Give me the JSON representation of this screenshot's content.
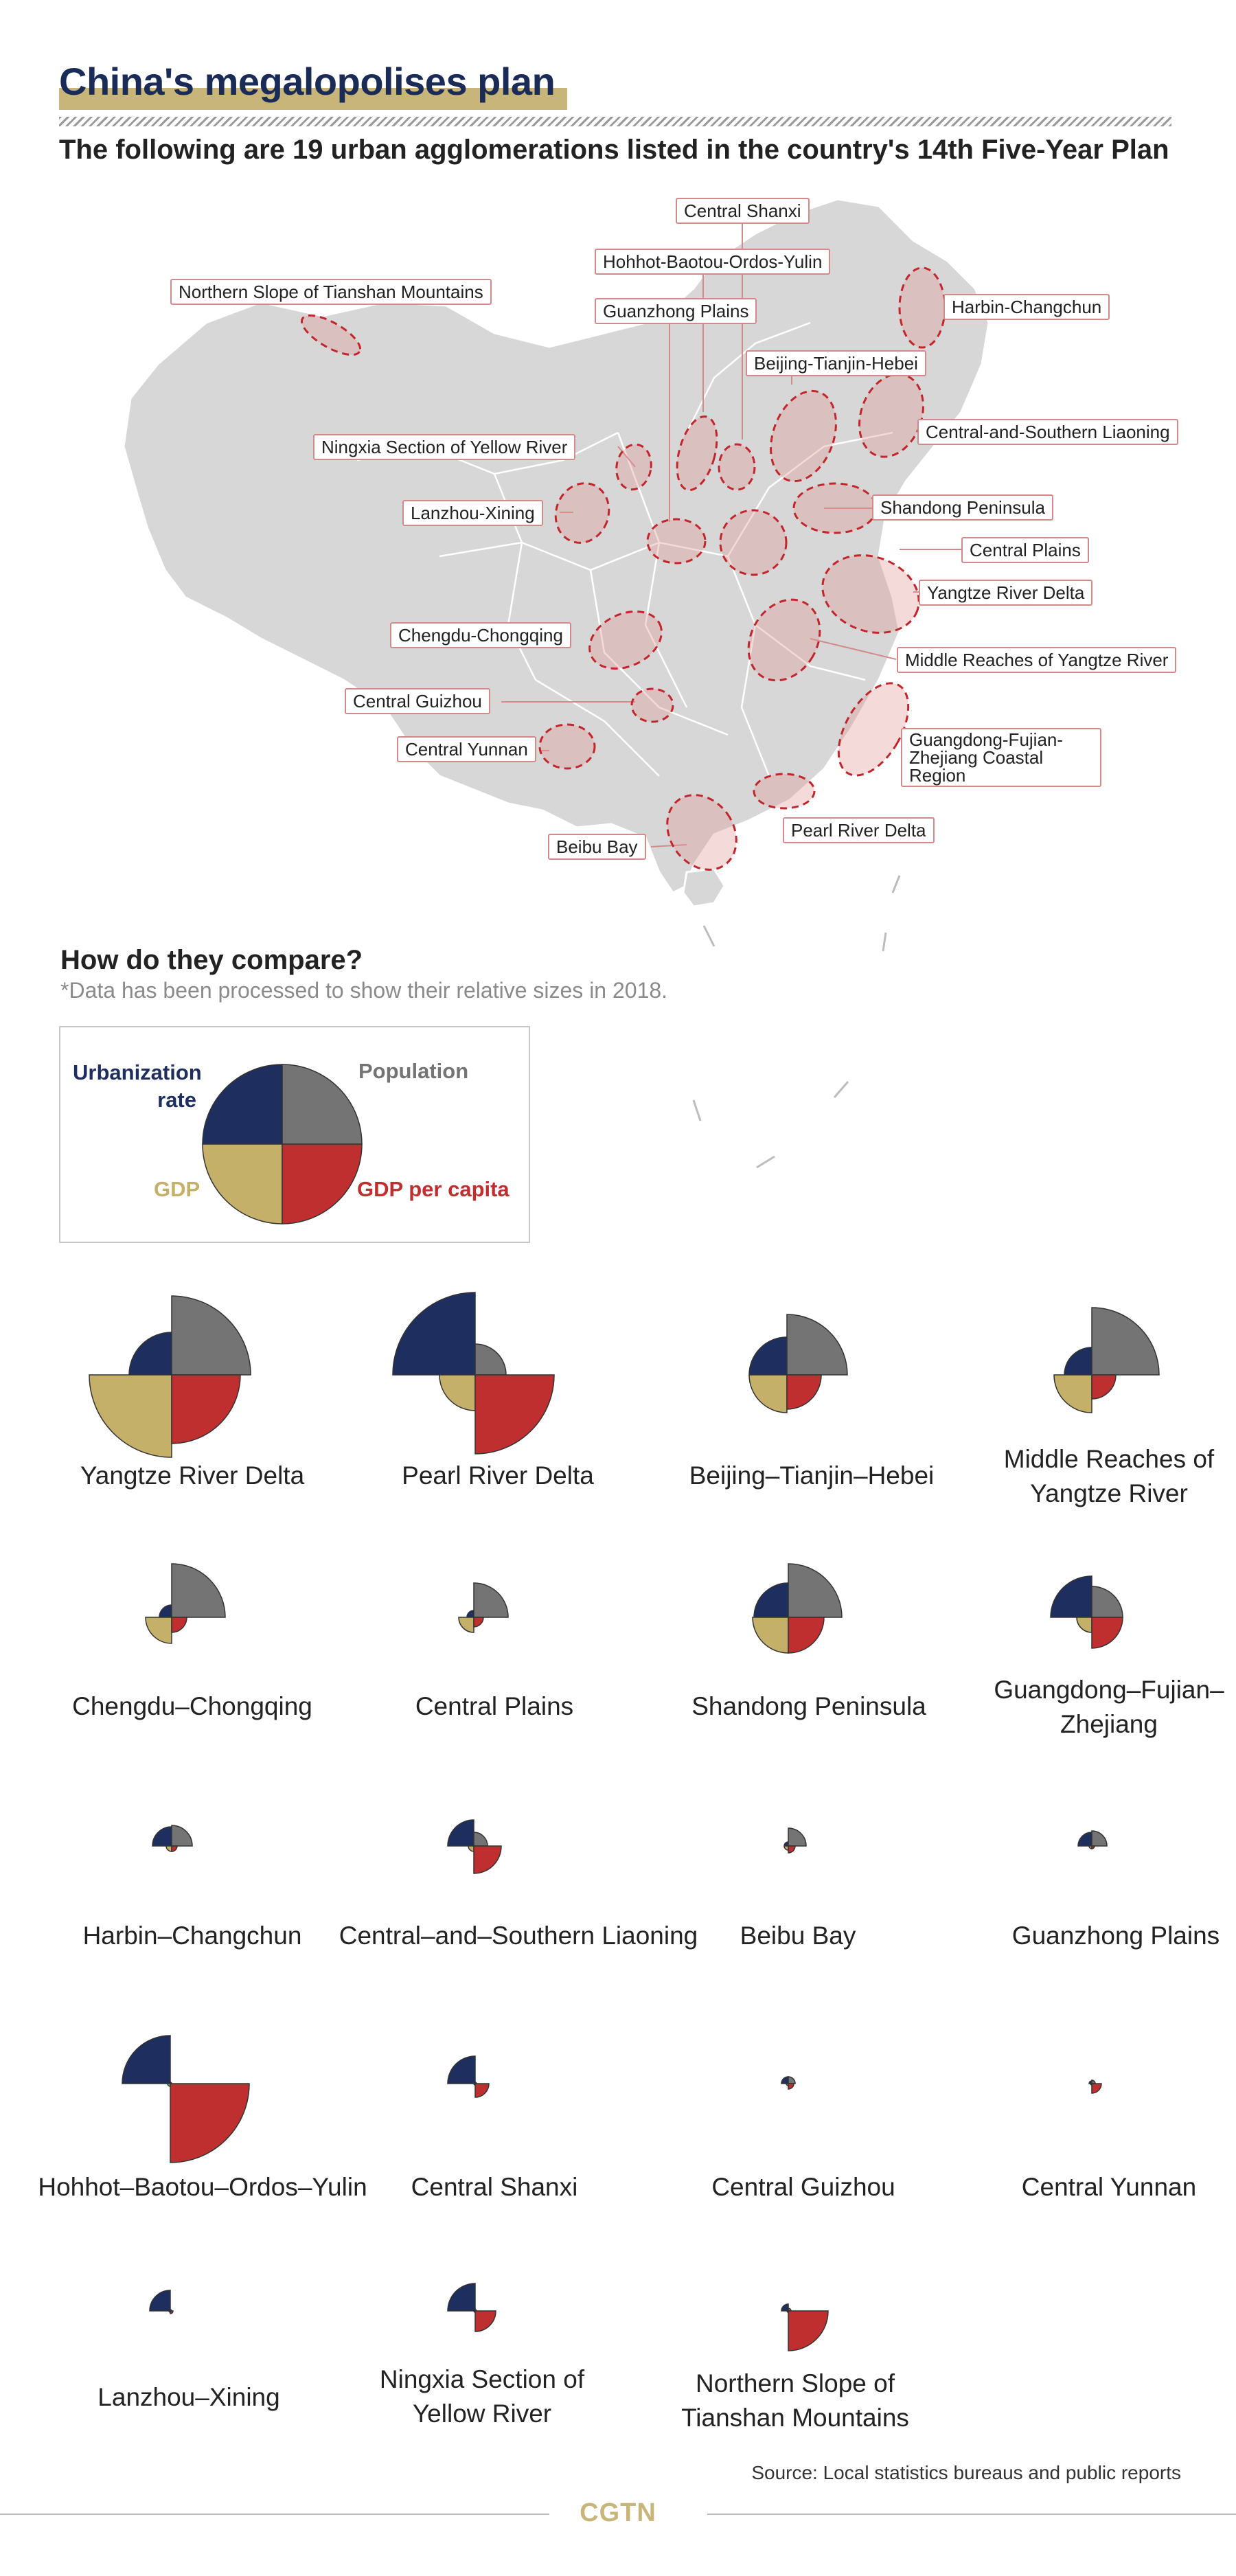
{
  "header": {
    "title": "China's megalopolises plan",
    "subtitle": "The following are 19 urban agglomerations listed in the country's 14th Five-Year Plan"
  },
  "map": {
    "labels": [
      "Central Shanxi",
      "Hohhot-Baotou-Ordos-Yulin",
      "Northern Slope of Tianshan Mountains",
      "Guanzhong Plains",
      "Harbin-Changchun",
      "Beijing-Tianjin-Hebei",
      "Central-and-Southern Liaoning",
      "Ningxia Section of Yellow River",
      "Lanzhou-Xining",
      "Shandong Peninsula",
      "Central Plains",
      "Yangtze River Delta",
      "Chengdu-Chongqing",
      "Middle Reaches of Yangtze River",
      "Central Guizhou",
      "Guangdong-Fujian-Zhejiang Coastal Region",
      "Central Yunnan",
      "Pearl River Delta",
      "Beibu Bay"
    ]
  },
  "compare": {
    "title": "How do they compare?",
    "note": "*Data has been processed to show their relative sizes in 2018."
  },
  "legend": {
    "urbanization": "Urbanization rate",
    "population": "Population",
    "gdp": "GDP",
    "gdp_per_capita": "GDP per capita",
    "colors": {
      "urbanization": "#1e2f5f",
      "population": "#747474",
      "gdp": "#c5b06a",
      "gdp_per_capita": "#bf2f2f"
    }
  },
  "chart_data": {
    "type": "polar-area",
    "note": "Relative quarter-circle radii per agglomeration (processed relative sizes, 2018)",
    "metrics": [
      "Urbanization rate",
      "Population",
      "GDP",
      "GDP per capita"
    ],
    "agglomerations": [
      {
        "name": "Yangtze River Delta",
        "urbanization": 62,
        "population": 115,
        "gdp": 120,
        "gdp_per_capita": 100
      },
      {
        "name": "Pearl River Delta",
        "urbanization": 120,
        "population": 45,
        "gdp": 52,
        "gdp_per_capita": 115
      },
      {
        "name": "Beijing–Tianjin–Hebei",
        "urbanization": 55,
        "population": 88,
        "gdp": 55,
        "gdp_per_capita": 50
      },
      {
        "name": "Middle Reaches of Yangtze River",
        "urbanization": 40,
        "population": 98,
        "gdp": 55,
        "gdp_per_capita": 35
      },
      {
        "name": "Chengdu–Chongqing",
        "urbanization": 18,
        "population": 78,
        "gdp": 38,
        "gdp_per_capita": 22
      },
      {
        "name": "Central Plains",
        "urbanization": 10,
        "population": 50,
        "gdp": 22,
        "gdp_per_capita": 14
      },
      {
        "name": "Shandong Peninsula",
        "urbanization": 50,
        "population": 78,
        "gdp": 52,
        "gdp_per_capita": 52
      },
      {
        "name": "Guangdong–Fujian–Zhejiang",
        "urbanization": 60,
        "population": 45,
        "gdp": 22,
        "gdp_per_capita": 45
      },
      {
        "name": "Harbin–Changchun",
        "urbanization": 28,
        "population": 30,
        "gdp": 8,
        "gdp_per_capita": 8
      },
      {
        "name": "Central–and–Southern Liaoning",
        "urbanization": 38,
        "population": 20,
        "gdp": 8,
        "gdp_per_capita": 40
      },
      {
        "name": "Beibu Bay",
        "urbanization": 6,
        "population": 26,
        "gdp": 6,
        "gdp_per_capita": 10
      },
      {
        "name": "Guanzhong Plains",
        "urbanization": 20,
        "population": 22,
        "gdp": 4,
        "gdp_per_capita": 4
      },
      {
        "name": "Hohhot–Baotou–Ordos–Yulin",
        "urbanization": 70,
        "population": 2,
        "gdp": 4,
        "gdp_per_capita": 115
      },
      {
        "name": "Central Shanxi",
        "urbanization": 40,
        "population": 2,
        "gdp": 2,
        "gdp_per_capita": 20
      },
      {
        "name": "Central Guizhou",
        "urbanization": 10,
        "population": 10,
        "gdp": 3,
        "gdp_per_capita": 8
      },
      {
        "name": "Central Yunnan",
        "urbanization": 4,
        "population": 5,
        "gdp": 2,
        "gdp_per_capita": 14
      },
      {
        "name": "Lanzhou–Xining",
        "urbanization": 30,
        "population": 2,
        "gdp": 2,
        "gdp_per_capita": 4
      },
      {
        "name": "Ningxia Section of Yellow River",
        "urbanization": 40,
        "population": 2,
        "gdp": 2,
        "gdp_per_capita": 30
      },
      {
        "name": "Northern Slope of Tianshan Mountains",
        "urbanization": 10,
        "population": 4,
        "gdp": 2,
        "gdp_per_capita": 58
      }
    ]
  },
  "grid_labels": [
    "Yangtze River Delta",
    "Pearl River Delta",
    "Beijing–Tianjin–Hebei",
    "Middle Reaches of Yangtze River",
    "Chengdu–Chongqing",
    "Central Plains",
    "Shandong Peninsula",
    "Guangdong–Fujian–Zhejiang",
    "Harbin–Changchun",
    "Central–and–Southern Liaoning",
    "Beibu Bay",
    "Guanzhong Plains",
    "Hohhot–Baotou–Ordos–Yulin",
    "Central Shanxi",
    "Central Guizhou",
    "Central Yunnan",
    "Lanzhou–Xining",
    "Ningxia Section of Yellow River",
    "Northern Slope of Tianshan Mountains"
  ],
  "footer": {
    "source": "Source: Local statistics bureaus and public reports",
    "brand": "CGTN"
  }
}
